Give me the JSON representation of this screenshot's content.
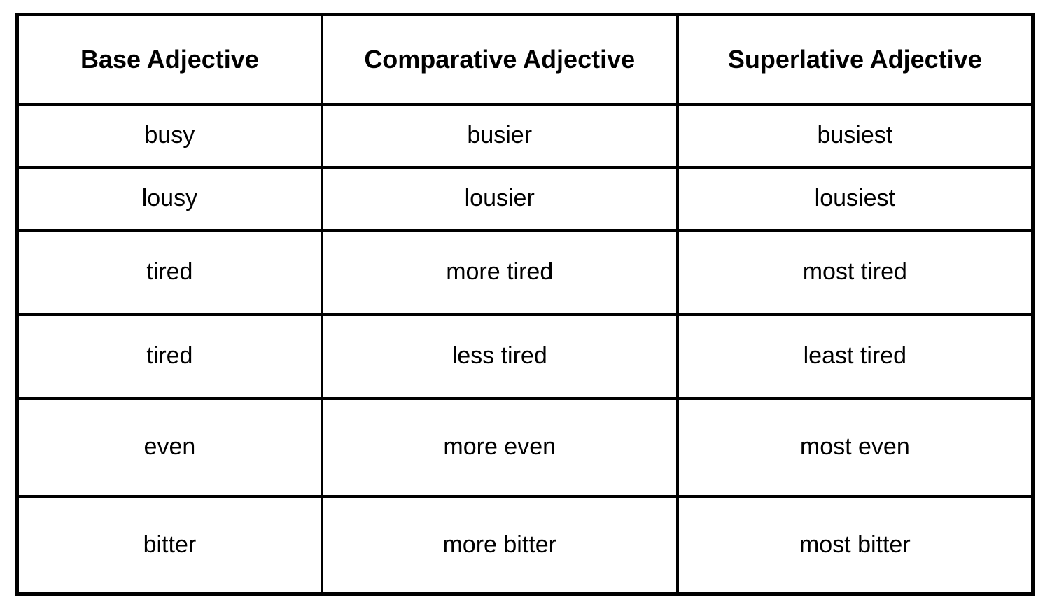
{
  "table": {
    "type": "table",
    "columns": [
      {
        "header": "Base Adjective",
        "width_pct": 30
      },
      {
        "header": "Comparative Adjective",
        "width_pct": 35
      },
      {
        "header": "Superlative Adjective",
        "width_pct": 35
      }
    ],
    "rows": [
      {
        "base": "busy",
        "comparative": "busier",
        "superlative": "busiest",
        "row_height_class": "row-small"
      },
      {
        "base": "lousy",
        "comparative": "lousier",
        "superlative": "lousiest",
        "row_height_class": "row-small"
      },
      {
        "base": "tired",
        "comparative": "more tired",
        "superlative": "most tired",
        "row_height_class": "row-medium"
      },
      {
        "base": "tired",
        "comparative": "less tired",
        "superlative": "least tired",
        "row_height_class": "row-medium"
      },
      {
        "base": "even",
        "comparative": "more even",
        "superlative": "most even",
        "row_height_class": "row-large"
      },
      {
        "base": "bitter",
        "comparative": "more bitter",
        "superlative": "most bitter",
        "row_height_class": "row-large"
      }
    ],
    "styling": {
      "border_color": "#000000",
      "outer_border_width": 5,
      "inner_border_width": 4,
      "background_color": "#ffffff",
      "text_color": "#000000",
      "header_font_size": 36,
      "header_font_weight": 700,
      "cell_font_size": 34,
      "cell_font_weight": 400,
      "text_align": "center",
      "header_row_height": 128,
      "row_small_height": 90,
      "row_medium_height": 120,
      "row_large_height": 140
    }
  }
}
